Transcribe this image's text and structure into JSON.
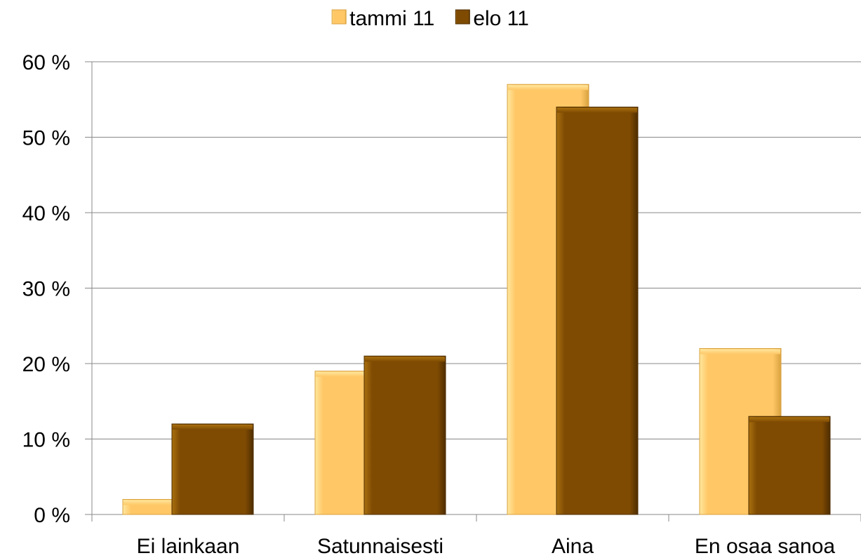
{
  "chart_data": {
    "type": "bar",
    "categories": [
      "Ei lainkaan",
      "Satunnaisesti",
      "Aina",
      "En osaa sanoa"
    ],
    "series": [
      {
        "name": "tammi 11",
        "values": [
          2,
          19,
          57,
          22
        ],
        "color": "#FFC766",
        "highlight": "#FFE79E",
        "edge": "#D9A240"
      },
      {
        "name": "elo 11",
        "values": [
          12,
          21,
          54,
          13
        ],
        "color": "#7F4B03",
        "highlight": "#A9700E",
        "edge": "#4E2D00"
      }
    ],
    "ylim": [
      0,
      60
    ],
    "yticks": [
      0,
      10,
      20,
      30,
      40,
      50,
      60
    ],
    "ytick_labels": [
      "0 %",
      "10 %",
      "20 %",
      "30 %",
      "40 %",
      "50 %",
      "60 %"
    ],
    "grid": true,
    "legend": "top-center"
  }
}
